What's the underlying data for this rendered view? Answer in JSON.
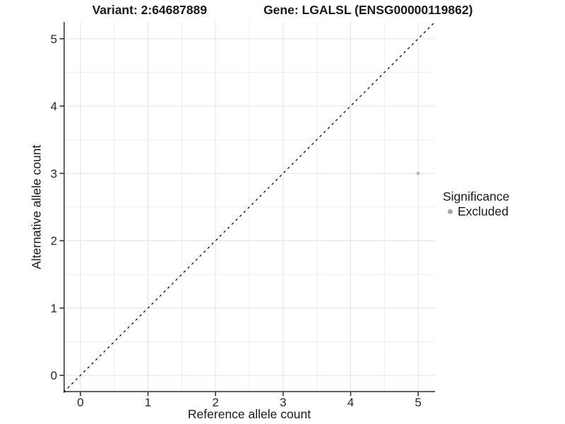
{
  "header": {
    "title_left": "Variant: 2:64687889",
    "title_right": "Gene: LGALSL (ENSG00000119862)"
  },
  "chart_data": {
    "type": "scatter",
    "title": "Variant: 2:64687889    Gene: LGALSL (ENSG00000119862)",
    "xlabel": "Reference allele count",
    "ylabel": "Alternative allele count",
    "xlim": [
      -0.25,
      5.25
    ],
    "ylim": [
      -0.25,
      5.25
    ],
    "xticks": [
      0,
      1,
      2,
      3,
      4,
      5
    ],
    "yticks": [
      0,
      1,
      2,
      3,
      4,
      5
    ],
    "grid": {
      "major": true,
      "minor": true,
      "major_color": "#e3e3e3",
      "minor_color": "#eeeeee",
      "background": "#ffffff"
    },
    "axis": {
      "line_color": "#3f3f3f",
      "tick_color": "#333333",
      "tick_label_color": "#262626"
    },
    "identity_line": {
      "slope": 1,
      "intercept": 0,
      "style": "dashed",
      "color": "#111111"
    },
    "points": [
      {
        "x": 5,
        "y": 3,
        "significance": "Excluded",
        "color": "#bdbdbd"
      }
    ],
    "legend": {
      "title": "Significance",
      "position": "right",
      "items": [
        {
          "label": "Excluded",
          "color": "#a6a6a6",
          "marker": "circle"
        }
      ]
    }
  }
}
